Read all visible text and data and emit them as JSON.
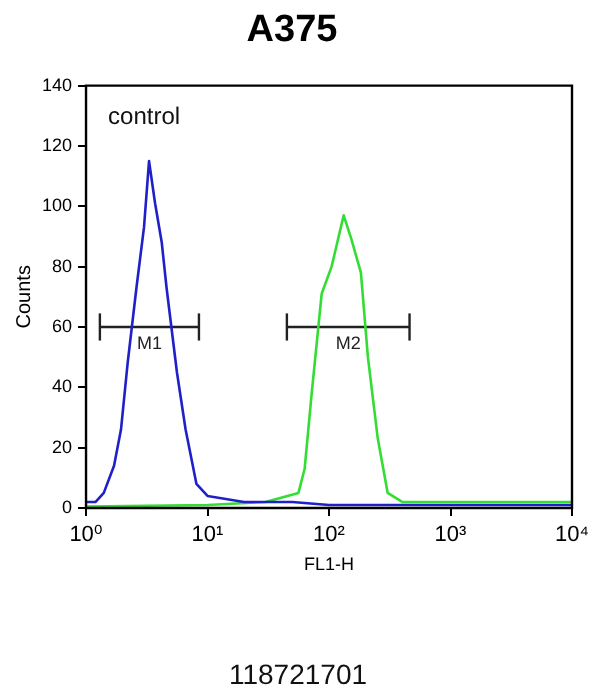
{
  "chart_data": {
    "type": "line",
    "title": "A375",
    "xlabel": "FL1-H",
    "ylabel": "Counts",
    "log": "x",
    "legend": false,
    "grid": false,
    "xlim": [
      1,
      10000
    ],
    "xticks": [
      {
        "value": 1,
        "label": "10⁰"
      },
      {
        "value": 10,
        "label": "10¹"
      },
      {
        "value": 100,
        "label": "10²"
      },
      {
        "value": 1000,
        "label": "10³"
      },
      {
        "value": 10000,
        "label": "10⁴"
      }
    ],
    "ylim": [
      0,
      140
    ],
    "yticks": [
      0,
      20,
      40,
      60,
      80,
      100,
      120,
      140
    ],
    "series": [
      {
        "color": "#2020c8",
        "marker": "none",
        "x": [
          1,
          1.2,
          1.4,
          1.7,
          1.94,
          2.2,
          2.6,
          3.0,
          3.3,
          3.7,
          4.2,
          4.6,
          5.6,
          6.6,
          8.1,
          10,
          20,
          50,
          100,
          1000,
          10000
        ],
        "values": [
          2,
          2,
          5,
          14,
          26,
          48,
          73,
          93,
          115,
          101,
          88,
          73,
          45,
          26,
          8,
          4,
          2,
          2,
          1,
          1,
          1
        ]
      },
      {
        "color": "#33dd33",
        "marker": "none",
        "x": [
          1,
          10,
          30,
          56,
          63,
          72,
          87,
          105,
          132,
          153,
          183,
          209,
          252,
          304,
          400,
          1000,
          10000
        ],
        "values": [
          0.5,
          1,
          2,
          5,
          13,
          38,
          71,
          80,
          97,
          89,
          78,
          50,
          23,
          5,
          2,
          2,
          2
        ]
      },
      {
        "name": "M1",
        "color": "#222222",
        "marker": "none",
        "x": [
          1.3,
          8.5
        ],
        "values": [
          60,
          60
        ],
        "errors": [
          4.5,
          4.5
        ]
      },
      {
        "name": "M2",
        "color": "#222222",
        "marker": "none",
        "x": [
          45,
          460
        ],
        "values": [
          60,
          60
        ],
        "errors": [
          4.5,
          4.5
        ]
      }
    ],
    "annotations": [
      "control",
      "118721701"
    ]
  }
}
